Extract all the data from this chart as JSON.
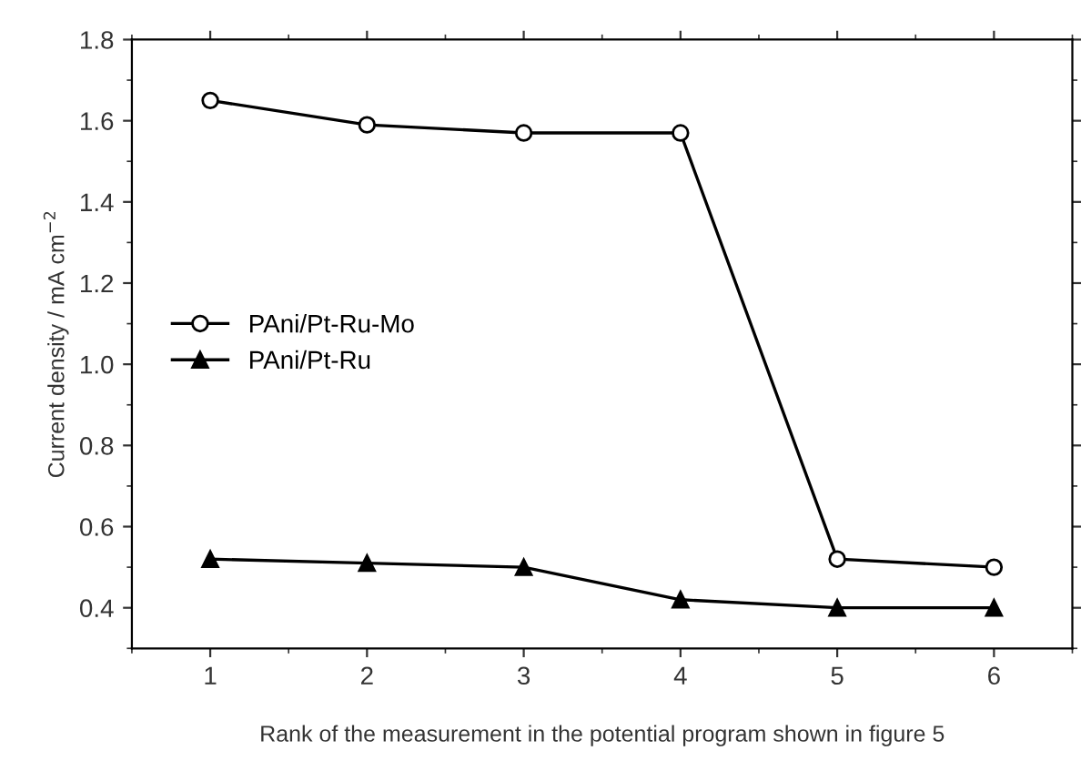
{
  "chart_data": {
    "type": "line",
    "xlabel": "Rank of the measurement in the potential program shown in figure 5",
    "ylabel": "Current density / mA cm$^{−2}$",
    "x": [
      1,
      2,
      3,
      4,
      5,
      6
    ],
    "series": [
      {
        "name": "PAni/Pt-Ru-Mo",
        "color": "#000000",
        "marker": "circle",
        "values": [
          1.65,
          1.59,
          1.57,
          1.57,
          0.52,
          0.5
        ]
      },
      {
        "name": "PAni/Pt-Ru",
        "color": "#000000",
        "marker": "triangle",
        "values": [
          0.52,
          0.51,
          0.5,
          0.42,
          0.4,
          0.4
        ]
      }
    ],
    "xlim": [
      0.5,
      6.5
    ],
    "xticks": [
      1,
      2,
      3,
      4,
      5,
      6
    ],
    "ylim": [
      0.3,
      1.8
    ],
    "yticks": [
      {
        "value": 0.4,
        "label": "0.4"
      },
      {
        "value": 0.6,
        "label": "0.6"
      },
      {
        "value": 0.8,
        "label": "0.8"
      },
      {
        "value": 1.0,
        "label": "1.0"
      },
      {
        "value": 1.2,
        "label": "1.2"
      },
      {
        "value": 1.4,
        "label": "1.4"
      },
      {
        "value": 1.6,
        "label": "1.6"
      },
      {
        "value": 1.8,
        "label": "1.8"
      }
    ],
    "grid": false,
    "legend": "center left",
    "line_style": "solid"
  }
}
